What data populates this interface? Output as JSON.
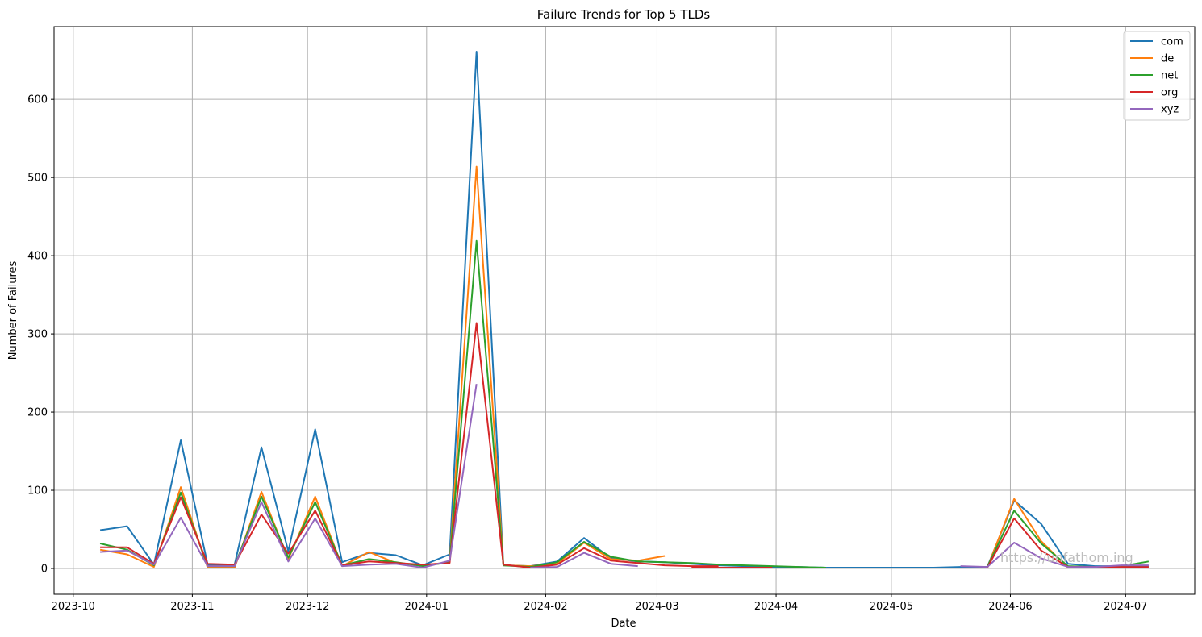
{
  "watermark": "https://unfathom.ing",
  "chart_data": {
    "type": "line",
    "title": "Failure Trends for Top 5 TLDs",
    "xlabel": "Date",
    "ylabel": "Number of Failures",
    "xlim": [
      "2023-09-26",
      "2024-07-19"
    ],
    "ylim": [
      -33,
      693
    ],
    "xticks": [
      "2023-10-01",
      "2023-11-01",
      "2023-12-01",
      "2024-01-01",
      "2024-02-01",
      "2024-03-01",
      "2024-04-01",
      "2024-05-01",
      "2024-06-01",
      "2024-07-01"
    ],
    "xtick_labels": [
      "2023-10",
      "2023-11",
      "2023-12",
      "2024-01",
      "2024-02",
      "2024-03",
      "2024-04",
      "2024-05",
      "2024-06",
      "2024-07"
    ],
    "yticks": [
      0,
      100,
      200,
      300,
      400,
      500,
      600
    ],
    "ytick_labels": [
      "0",
      "100",
      "200",
      "300",
      "400",
      "500",
      "600"
    ],
    "grid": true,
    "legend_position": "top-right",
    "series": [
      {
        "name": "com",
        "color": "#1f77b4",
        "segments": [
          [
            [
              "2023-10-08",
              49
            ],
            [
              "2023-10-15",
              54
            ],
            [
              "2023-10-22",
              5
            ],
            [
              "2023-10-29",
              164
            ],
            [
              "2023-11-05",
              5
            ],
            [
              "2023-11-12",
              5
            ],
            [
              "2023-11-19",
              155
            ],
            [
              "2023-11-26",
              22
            ],
            [
              "2023-12-03",
              178
            ],
            [
              "2023-12-10",
              8
            ],
            [
              "2023-12-17",
              20
            ],
            [
              "2023-12-24",
              17
            ],
            [
              "2023-12-31",
              4
            ],
            [
              "2024-01-07",
              18
            ],
            [
              "2024-01-14",
              661
            ],
            [
              "2024-01-21",
              4
            ],
            [
              "2024-01-28",
              3
            ],
            [
              "2024-02-04",
              9
            ],
            [
              "2024-02-11",
              39
            ],
            [
              "2024-02-18",
              13
            ],
            [
              "2024-02-25",
              9
            ],
            [
              "2024-03-03",
              8
            ],
            [
              "2024-03-10",
              6
            ],
            [
              "2024-03-17",
              4
            ],
            [
              "2024-03-24",
              3
            ],
            [
              "2024-03-31",
              2
            ],
            [
              "2024-04-07",
              2
            ],
            [
              "2024-04-14",
              1
            ],
            [
              "2024-04-21",
              1
            ],
            [
              "2024-04-28",
              1
            ],
            [
              "2024-05-05",
              1
            ],
            [
              "2024-05-12",
              1
            ],
            [
              "2024-05-19",
              2
            ],
            [
              "2024-05-26",
              2
            ],
            [
              "2024-06-02",
              87
            ],
            [
              "2024-06-09",
              57
            ],
            [
              "2024-06-16",
              6
            ],
            [
              "2024-06-23",
              3
            ],
            [
              "2024-06-30",
              3
            ],
            [
              "2024-07-07",
              3
            ]
          ]
        ]
      },
      {
        "name": "de",
        "color": "#ff7f0e",
        "segments": [
          [
            [
              "2023-10-08",
              24
            ],
            [
              "2023-10-15",
              18
            ],
            [
              "2023-10-22",
              2
            ],
            [
              "2023-10-29",
              104
            ],
            [
              "2023-11-05",
              1
            ],
            [
              "2023-11-12",
              1
            ],
            [
              "2023-11-19",
              98
            ],
            [
              "2023-11-26",
              12
            ],
            [
              "2023-12-03",
              92
            ],
            [
              "2023-12-10",
              3
            ],
            [
              "2023-12-17",
              21
            ],
            [
              "2023-12-24",
              7
            ],
            [
              "2023-12-31",
              4
            ],
            [
              "2024-01-07",
              8
            ],
            [
              "2024-01-14",
              514
            ],
            [
              "2024-01-21",
              4
            ],
            [
              "2024-01-28",
              3
            ],
            [
              "2024-02-04",
              6
            ],
            [
              "2024-02-11",
              33
            ],
            [
              "2024-02-18",
              12
            ],
            [
              "2024-02-25",
              10
            ],
            [
              "2024-03-03",
              16
            ]
          ],
          [
            [
              "2024-05-26",
              1
            ],
            [
              "2024-06-02",
              89
            ],
            [
              "2024-06-09",
              35
            ],
            [
              "2024-06-16",
              1
            ],
            [
              "2024-06-23",
              1
            ],
            [
              "2024-06-30",
              1
            ],
            [
              "2024-07-07",
              1
            ]
          ]
        ]
      },
      {
        "name": "net",
        "color": "#2ca02c",
        "segments": [
          [
            [
              "2023-10-08",
              32
            ],
            [
              "2023-10-15",
              24
            ],
            [
              "2023-10-22",
              4
            ],
            [
              "2023-10-29",
              97
            ],
            [
              "2023-11-05",
              3
            ],
            [
              "2023-11-12",
              3
            ],
            [
              "2023-11-19",
              92
            ],
            [
              "2023-11-26",
              14
            ],
            [
              "2023-12-03",
              85
            ],
            [
              "2023-12-10",
              4
            ],
            [
              "2023-12-17",
              12
            ],
            [
              "2023-12-24",
              8
            ],
            [
              "2023-12-31",
              3
            ],
            [
              "2024-01-07",
              8
            ],
            [
              "2024-01-14",
              419
            ],
            [
              "2024-01-21",
              4
            ],
            [
              "2024-01-28",
              2
            ],
            [
              "2024-02-04",
              8
            ],
            [
              "2024-02-11",
              34
            ],
            [
              "2024-02-18",
              15
            ],
            [
              "2024-02-25",
              9
            ],
            [
              "2024-03-03",
              8
            ],
            [
              "2024-03-10",
              7
            ],
            [
              "2024-03-17",
              5
            ],
            [
              "2024-03-24",
              4
            ],
            [
              "2024-03-31",
              3
            ],
            [
              "2024-04-07",
              2
            ],
            [
              "2024-04-14",
              1
            ]
          ],
          [
            [
              "2024-05-26",
              2
            ],
            [
              "2024-06-02",
              74
            ],
            [
              "2024-06-09",
              32
            ],
            [
              "2024-06-16",
              3
            ],
            [
              "2024-06-23",
              2
            ],
            [
              "2024-06-30",
              3
            ],
            [
              "2024-07-07",
              9
            ]
          ]
        ]
      },
      {
        "name": "org",
        "color": "#d62728",
        "segments": [
          [
            [
              "2023-10-08",
              27
            ],
            [
              "2023-10-15",
              27
            ],
            [
              "2023-10-22",
              6
            ],
            [
              "2023-10-29",
              91
            ],
            [
              "2023-11-05",
              6
            ],
            [
              "2023-11-12",
              5
            ],
            [
              "2023-11-19",
              69
            ],
            [
              "2023-11-26",
              19
            ],
            [
              "2023-12-03",
              74
            ],
            [
              "2023-12-10",
              4
            ],
            [
              "2023-12-17",
              9
            ],
            [
              "2023-12-24",
              7
            ],
            [
              "2023-12-31",
              5
            ],
            [
              "2024-01-07",
              7
            ],
            [
              "2024-01-14",
              314
            ],
            [
              "2024-01-21",
              5
            ],
            [
              "2024-01-28",
              1
            ],
            [
              "2024-02-04",
              5
            ],
            [
              "2024-02-11",
              26
            ],
            [
              "2024-02-18",
              10
            ],
            [
              "2024-02-25",
              7
            ],
            [
              "2024-03-03",
              4
            ],
            [
              "2024-03-10",
              3
            ],
            [
              "2024-03-17",
              3
            ]
          ],
          [
            [
              "2024-03-10",
              1
            ],
            [
              "2024-03-17",
              1
            ],
            [
              "2024-03-24",
              1
            ],
            [
              "2024-03-31",
              1
            ]
          ],
          [
            [
              "2024-05-26",
              1
            ],
            [
              "2024-06-02",
              64
            ],
            [
              "2024-06-09",
              23
            ],
            [
              "2024-06-16",
              2
            ],
            [
              "2024-06-23",
              2
            ],
            [
              "2024-06-30",
              2
            ],
            [
              "2024-07-07",
              2
            ]
          ]
        ]
      },
      {
        "name": "xyz",
        "color": "#9467bd",
        "segments": [
          [
            [
              "2023-10-08",
              21
            ],
            [
              "2023-10-15",
              23
            ],
            [
              "2023-10-22",
              5
            ],
            [
              "2023-10-29",
              65
            ],
            [
              "2023-11-05",
              3
            ],
            [
              "2023-11-12",
              3
            ],
            [
              "2023-11-19",
              85
            ],
            [
              "2023-11-26",
              9
            ],
            [
              "2023-12-03",
              64
            ],
            [
              "2023-12-10",
              3
            ],
            [
              "2023-12-17",
              5
            ],
            [
              "2023-12-24",
              6
            ],
            [
              "2023-12-31",
              1
            ],
            [
              "2024-01-07",
              10
            ],
            [
              "2024-01-14",
              236
            ]
          ],
          [
            [
              "2024-01-28",
              1
            ],
            [
              "2024-02-04",
              2
            ],
            [
              "2024-02-11",
              20
            ],
            [
              "2024-02-18",
              6
            ],
            [
              "2024-02-25",
              3
            ]
          ],
          [
            [
              "2024-05-19",
              3
            ],
            [
              "2024-05-26",
              2
            ],
            [
              "2024-06-02",
              33
            ],
            [
              "2024-06-09",
              13
            ],
            [
              "2024-06-16",
              2
            ],
            [
              "2024-06-23",
              2
            ],
            [
              "2024-06-30",
              4
            ],
            [
              "2024-07-07",
              4
            ]
          ]
        ]
      }
    ]
  }
}
